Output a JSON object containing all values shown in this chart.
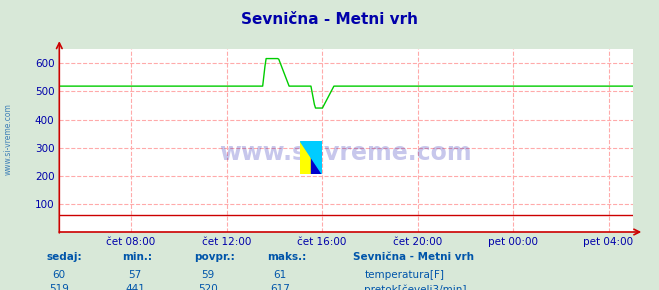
{
  "title": "Sevnična - Metni vrh",
  "bg_color": "#d8e8d8",
  "plot_bg_color": "#ffffff",
  "grid_color": "#ffaaaa",
  "x_ticks_labels": [
    "čet 08:00",
    "čet 12:00",
    "čet 16:00",
    "čet 20:00",
    "pet 00:00",
    "pet 04:00"
  ],
  "x_ticks_pos": [
    0.125,
    0.292,
    0.458,
    0.625,
    0.792,
    0.958
  ],
  "ylim": [
    0,
    650
  ],
  "y_ticks": [
    0,
    100,
    200,
    300,
    400,
    500,
    600
  ],
  "title_color": "#0000aa",
  "tick_color": "#0000aa",
  "temp_color": "#cc0000",
  "flow_color": "#00cc00",
  "arrow_color": "#cc0000",
  "watermark_color": "#0000aa",
  "watermark_text": "www.si-vreme.com",
  "temp_value": 60,
  "temp_min": 57,
  "temp_avg": 59,
  "temp_max": 61,
  "flow_value": 519,
  "flow_min": 441,
  "flow_avg": 520,
  "flow_max": 617,
  "station_name": "Sevnična - Metni vrh",
  "label_sedaj": "sedaj:",
  "label_min": "min.:",
  "label_povpr": "povpr.:",
  "label_maks": "maks.:",
  "legend_temp": "temperatura[F]",
  "legend_flow": "pretok[čevelj3/min]",
  "footer_color": "#0055aa",
  "num_color": "#0055aa",
  "side_text": "www.si-vreme.com"
}
